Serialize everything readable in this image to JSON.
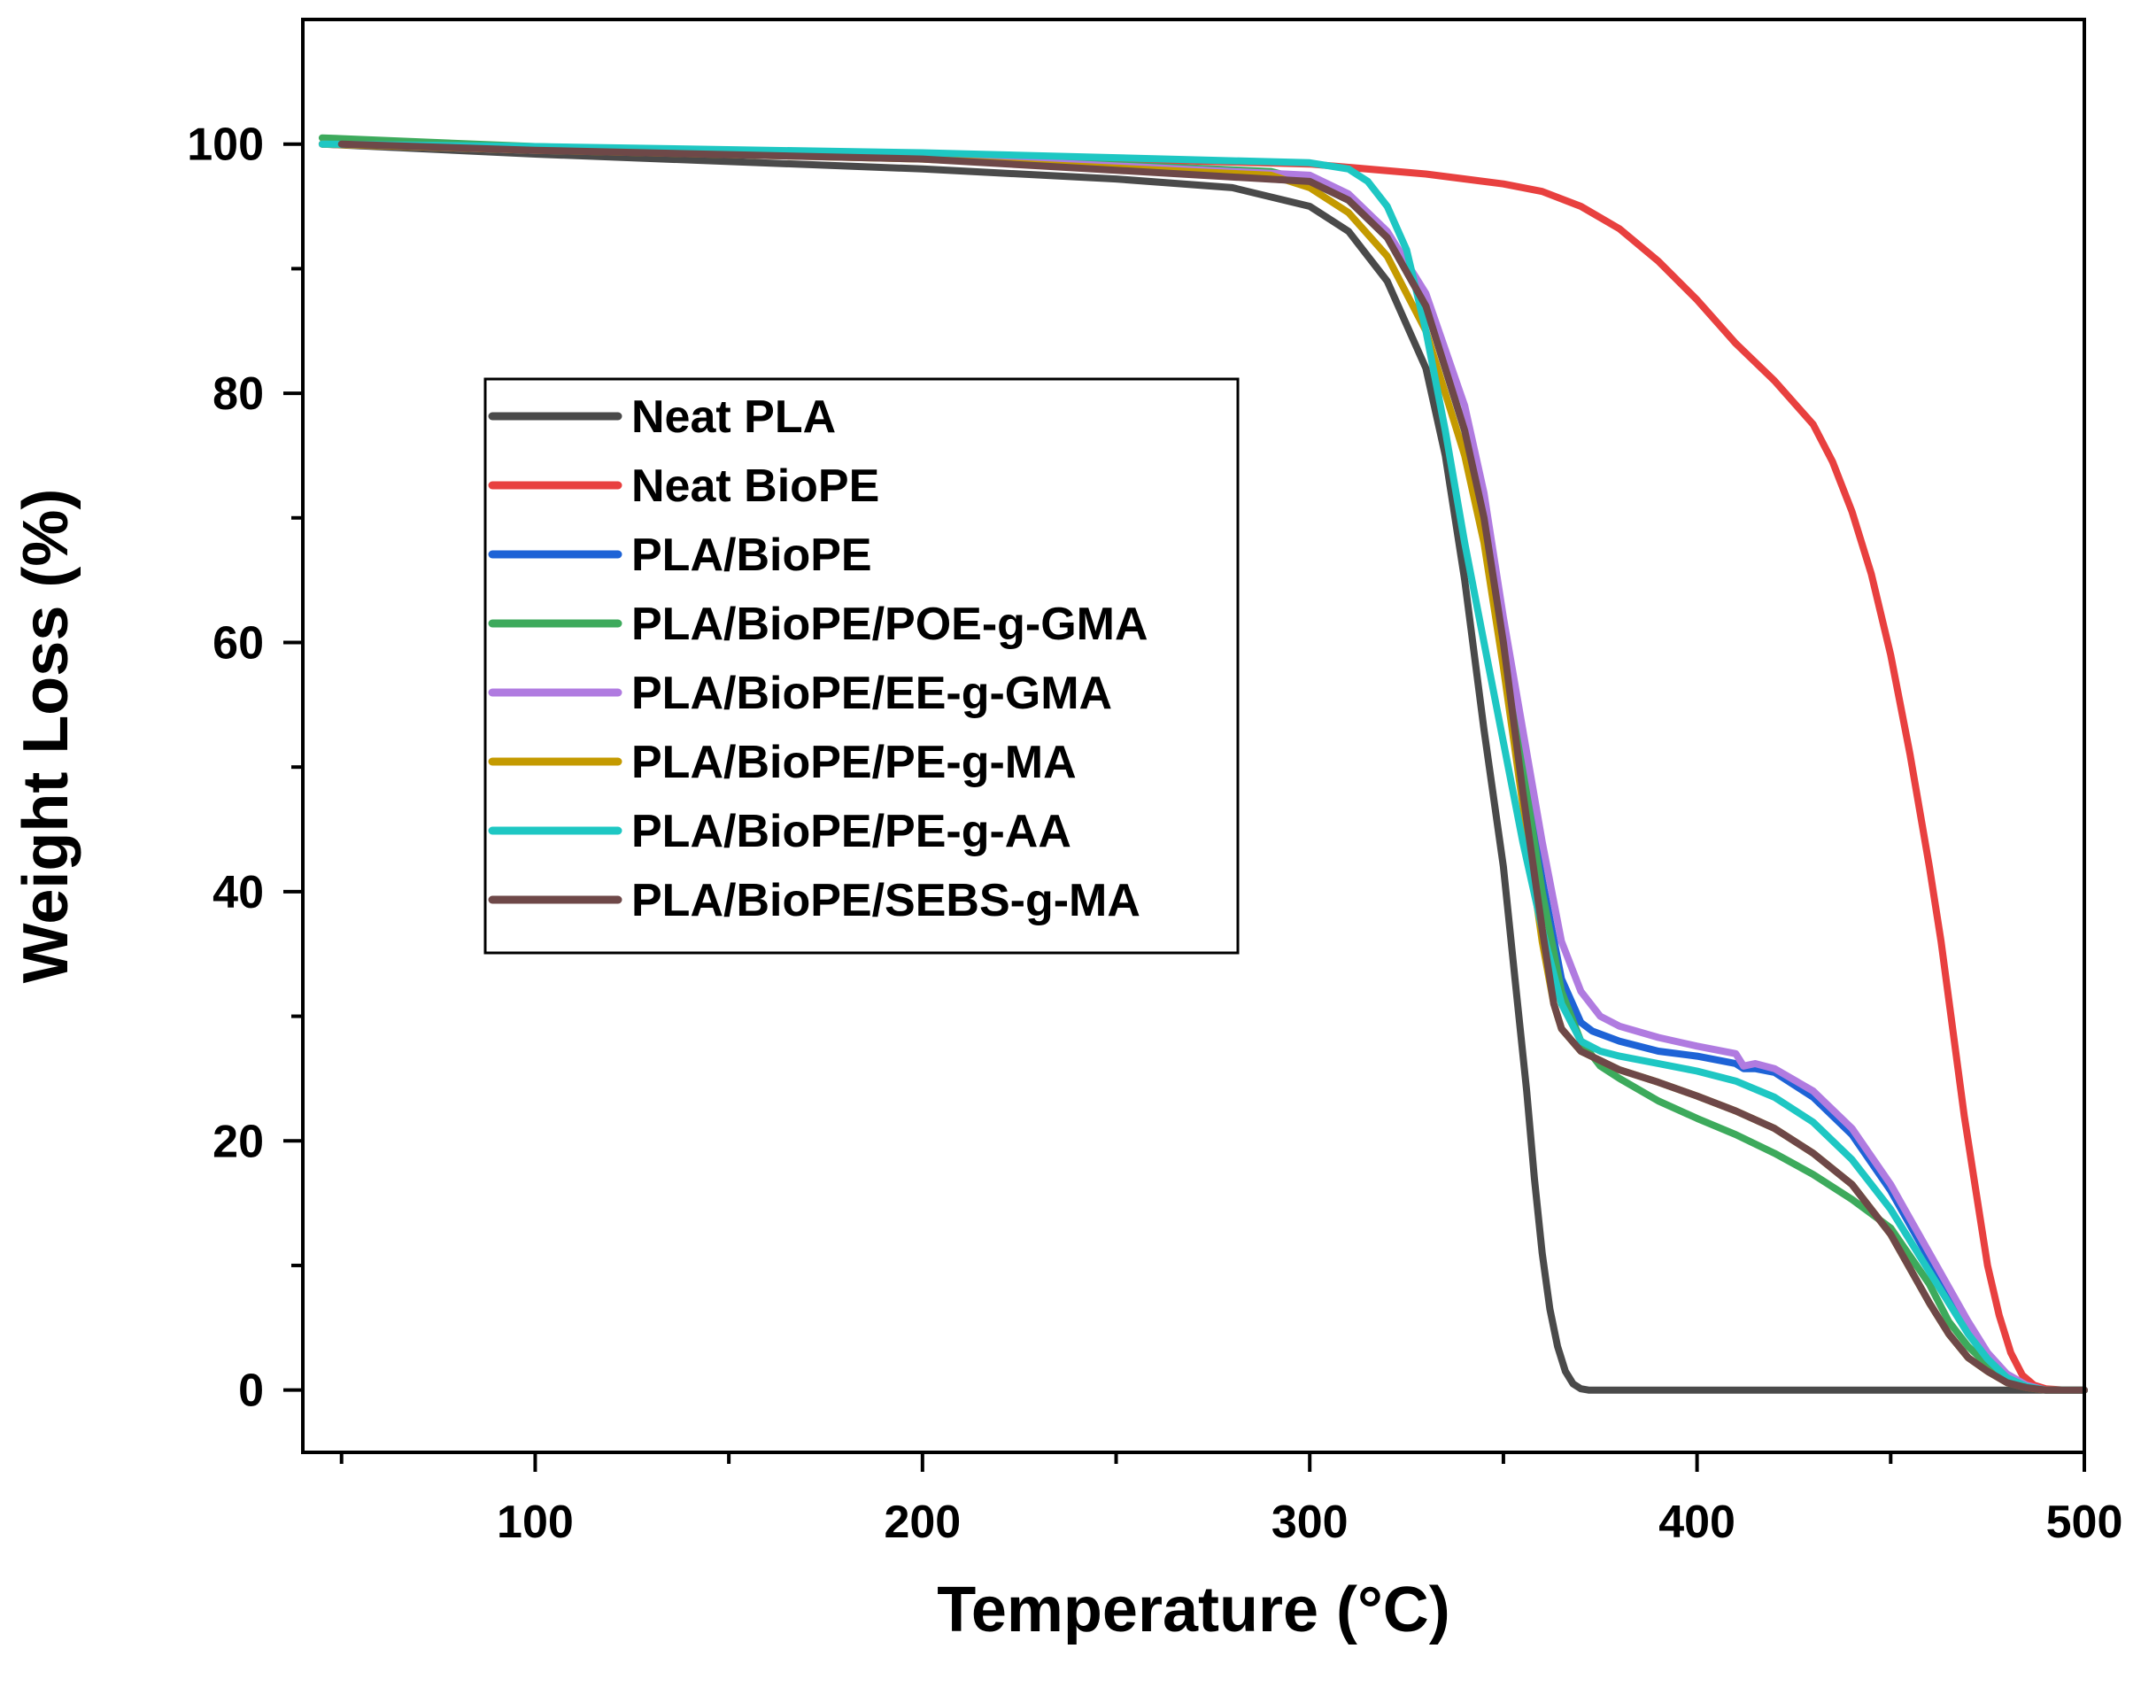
{
  "chart_data": {
    "type": "line",
    "title": "",
    "xlabel": "Temperature (°C)",
    "ylabel": "Weight Loss (%)",
    "xlim": [
      40,
      500
    ],
    "ylim": [
      -5,
      110
    ],
    "xticks": [
      100,
      200,
      300,
      400,
      500
    ],
    "xticks_minor": [
      50,
      150,
      250,
      350,
      450
    ],
    "yticks": [
      0,
      20,
      40,
      60,
      80,
      100
    ],
    "yticks_minor": [
      10,
      30,
      50,
      70,
      90
    ],
    "xtick_labels": [
      "100",
      "200",
      "300",
      "400",
      "500"
    ],
    "ytick_labels": [
      "0",
      "20",
      "40",
      "60",
      "80",
      "100"
    ],
    "grid": false,
    "legend_position": "center-left",
    "series": [
      {
        "name": "Neat PLA",
        "color": "#4a4a4a",
        "x": [
          45,
          100,
          150,
          200,
          250,
          280,
          300,
          310,
          320,
          330,
          335,
          340,
          345,
          350,
          353,
          356,
          358,
          360,
          362,
          364,
          366,
          368,
          370,
          372,
          375,
          400,
          450,
          500
        ],
        "y": [
          100,
          99.2,
          98.6,
          98,
          97.2,
          96.5,
          95,
          93,
          89,
          82,
          75,
          65,
          53,
          42,
          33,
          24,
          17,
          11,
          6.5,
          3.5,
          1.5,
          0.5,
          0.1,
          0,
          0,
          0,
          0,
          0
        ]
      },
      {
        "name": "Neat BioPE",
        "color": "#e8403f",
        "x": [
          45,
          100,
          200,
          300,
          330,
          350,
          360,
          370,
          380,
          390,
          400,
          410,
          420,
          430,
          435,
          440,
          445,
          450,
          455,
          460,
          463,
          466,
          469,
          472,
          475,
          478,
          481,
          484,
          487,
          490,
          495,
          500
        ],
        "y": [
          100,
          99.6,
          99.2,
          98.4,
          97.6,
          96.8,
          96.2,
          95,
          93.2,
          90.6,
          87.5,
          84,
          81,
          77.5,
          74.5,
          70.5,
          65.5,
          59,
          51,
          42,
          36,
          29,
          22,
          16,
          10,
          6,
          3,
          1.2,
          0.4,
          0.1,
          0,
          0
        ]
      },
      {
        "name": "PLA/BioPE",
        "color": "#1e63d6",
        "x": [
          45,
          100,
          200,
          300,
          310,
          320,
          330,
          340,
          345,
          350,
          355,
          360,
          365,
          370,
          373,
          380,
          390,
          400,
          410,
          412,
          415,
          420,
          430,
          440,
          450,
          460,
          470,
          475,
          480,
          485,
          490,
          500
        ],
        "y": [
          100,
          99.5,
          99,
          97,
          95.5,
          92.5,
          87,
          77,
          70,
          60,
          50,
          41,
          33,
          29.5,
          28.8,
          28,
          27.2,
          26.8,
          26.2,
          25.8,
          25.8,
          25.5,
          23.5,
          20.5,
          16,
          10.5,
          5,
          2.5,
          1,
          0.3,
          0,
          0
        ]
      },
      {
        "name": "PLA/BioPE/POE-g-GMA",
        "color": "#3daa5c",
        "x": [
          45,
          100,
          200,
          290,
          300,
          310,
          320,
          330,
          340,
          345,
          350,
          355,
          360,
          365,
          370,
          375,
          380,
          390,
          400,
          410,
          420,
          430,
          440,
          450,
          460,
          465,
          470,
          475,
          480,
          485,
          490,
          500
        ],
        "y": [
          100.5,
          99.8,
          99,
          97.8,
          97,
          95.5,
          92.5,
          87,
          77,
          70,
          60,
          50,
          40,
          32,
          28,
          26,
          25,
          23.2,
          21.8,
          20.5,
          19,
          17.3,
          15.3,
          13,
          8.5,
          5.5,
          3.5,
          2,
          1,
          0.3,
          0,
          0
        ]
      },
      {
        "name": "PLA/BioPE/EE-g-GMA",
        "color": "#b07be0",
        "x": [
          45,
          100,
          200,
          300,
          310,
          320,
          330,
          340,
          345,
          350,
          355,
          360,
          365,
          370,
          375,
          380,
          390,
          400,
          410,
          412,
          415,
          420,
          430,
          440,
          450,
          460,
          470,
          475,
          480,
          485,
          490,
          500
        ],
        "y": [
          100,
          99.5,
          99,
          97.5,
          96,
          93,
          88,
          79,
          72,
          62,
          53,
          44,
          36,
          32,
          30,
          29.2,
          28.3,
          27.6,
          27,
          26,
          26.2,
          25.8,
          24,
          21,
          16.5,
          11,
          5.5,
          3,
          1.3,
          0.4,
          0,
          0
        ]
      },
      {
        "name": "PLA/BioPE/PE-g-MA",
        "color": "#c49a00",
        "x": [
          45,
          100,
          200,
          290,
          300,
          310,
          320,
          330,
          340,
          345,
          350,
          355,
          360,
          363,
          365,
          370,
          380,
          390,
          400,
          410,
          420,
          430,
          440,
          450,
          460,
          465,
          470,
          475,
          480,
          485,
          490,
          500
        ],
        "y": [
          100,
          99.5,
          98.8,
          97.5,
          96.5,
          94.5,
          91,
          85,
          75,
          68,
          58,
          47,
          36,
          31,
          29,
          27.2,
          25.7,
          24.7,
          23.6,
          22.4,
          21,
          19,
          16.5,
          12.5,
          7,
          4.5,
          2.6,
          1.5,
          0.6,
          0.2,
          0,
          0
        ]
      },
      {
        "name": "PLA/BioPE/PE-g-AA",
        "color": "#1ec7c3",
        "x": [
          45,
          100,
          200,
          300,
          310,
          315,
          320,
          325,
          330,
          335,
          340,
          345,
          350,
          355,
          360,
          365,
          370,
          375,
          380,
          390,
          400,
          410,
          420,
          430,
          440,
          450,
          460,
          470,
          475,
          480,
          485,
          490,
          500
        ],
        "y": [
          100,
          99.8,
          99.3,
          98.5,
          98,
          97,
          95,
          91.5,
          85,
          77,
          68,
          60,
          52,
          44,
          37,
          31,
          28,
          27.2,
          26.8,
          26.2,
          25.6,
          24.8,
          23.5,
          21.5,
          18.5,
          14.5,
          9.5,
          4.5,
          2.5,
          1,
          0.3,
          0,
          0
        ]
      },
      {
        "name": "PLA/BioPE/SEBS-g-MA",
        "color": "#6e4848",
        "x": [
          50,
          100,
          200,
          300,
          310,
          320,
          330,
          340,
          345,
          350,
          355,
          360,
          363,
          365,
          370,
          380,
          390,
          400,
          410,
          420,
          430,
          440,
          450,
          460,
          465,
          470,
          475,
          480,
          485,
          490,
          500
        ],
        "y": [
          100,
          99.5,
          98.8,
          97,
          95.5,
          92.5,
          87,
          77,
          70,
          60,
          48,
          37,
          31,
          29,
          27.2,
          25.7,
          24.7,
          23.6,
          22.4,
          21,
          19,
          16.5,
          12.5,
          7,
          4.5,
          2.6,
          1.5,
          0.6,
          0.2,
          0,
          0
        ]
      }
    ]
  }
}
